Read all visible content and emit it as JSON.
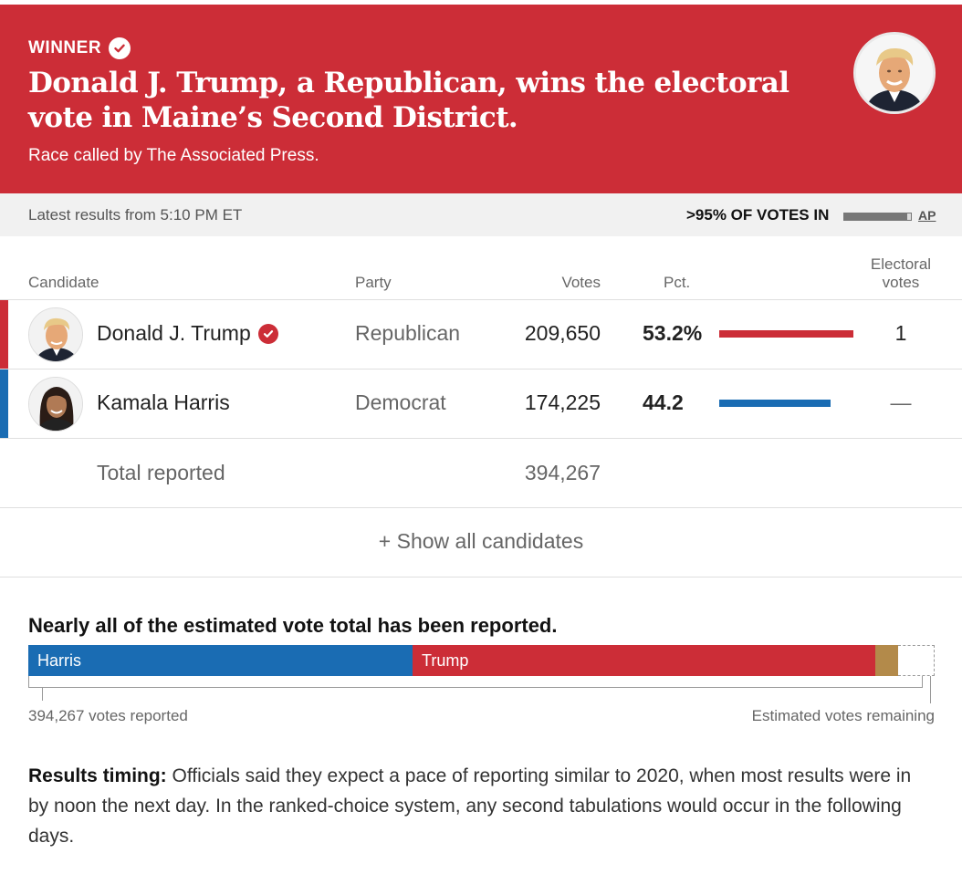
{
  "banner": {
    "winner_label": "WINNER",
    "headline": "Donald J. Trump, a Republican, wins the electoral vote in Maine’s Second District.",
    "called_by": "Race called by The Associated Press.",
    "bg_color": "#cc2d37"
  },
  "status": {
    "latest": "Latest results from 5:10 PM ET",
    "votes_in": ">95% OF VOTES IN",
    "votes_in_fraction": 0.95,
    "source": "AP"
  },
  "table": {
    "headers": {
      "candidate": "Candidate",
      "party": "Party",
      "votes": "Votes",
      "pct": "Pct.",
      "electoral_line1": "Electoral",
      "electoral_line2": "votes"
    },
    "rows": [
      {
        "name": "Donald J. Trump",
        "party": "Republican",
        "votes": "209,650",
        "pct": "53.2%",
        "pct_value": 53.2,
        "electoral": "1",
        "color": "#cc2d37",
        "winner": true
      },
      {
        "name": "Kamala Harris",
        "party": "Democrat",
        "votes": "174,225",
        "pct": "44.2",
        "pct_value": 44.2,
        "electoral": "—",
        "color": "#1a6cb3",
        "winner": false
      }
    ],
    "total_label": "Total reported",
    "total_votes": "394,267",
    "show_all": "+ Show all candidates"
  },
  "estimate": {
    "title": "Nearly all of the estimated vote total has been reported.",
    "segments": [
      {
        "label": "Harris",
        "share": 0.442,
        "color": "#1a6cb3"
      },
      {
        "label": "Trump",
        "share": 0.532,
        "color": "#cc2d37"
      },
      {
        "label": "",
        "share": 0.026,
        "color": "#b38a4a"
      }
    ],
    "reported_label": "394,267 votes reported",
    "remaining_label": "Estimated votes remaining"
  },
  "timing": {
    "label": "Results timing:",
    "text": " Officials said they expect a pace of reporting similar to 2020, when most results were in by noon the next day. In the ranked-choice system, any second tabulations would occur in the following days."
  }
}
